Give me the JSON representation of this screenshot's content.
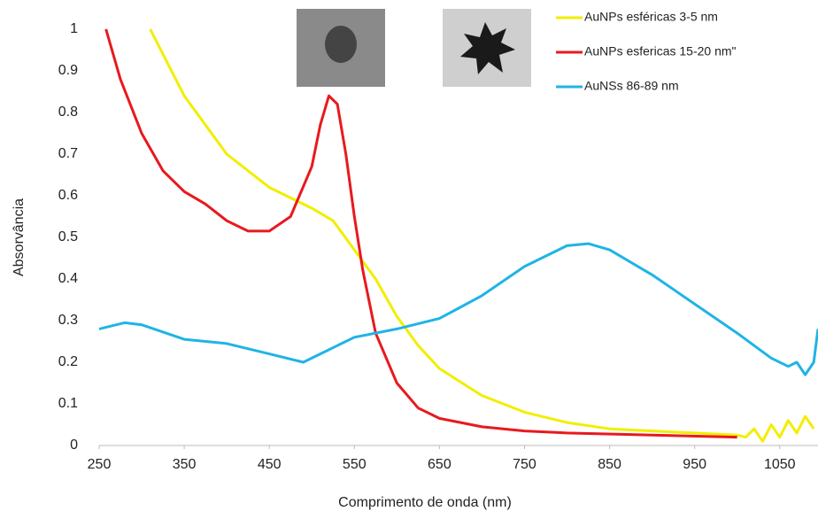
{
  "chart_data": {
    "type": "line",
    "x_label": "Comprimento de onda (nm)",
    "y_label": "Absorvância",
    "xlim": [
      250,
      1095
    ],
    "ylim": [
      0,
      1
    ],
    "xticks": [
      250,
      350,
      450,
      550,
      650,
      750,
      850,
      950,
      1050
    ],
    "yticks": [
      0,
      0.1,
      0.2,
      0.3,
      0.4,
      0.5,
      0.6,
      0.7,
      0.8,
      0.9,
      1
    ],
    "grid": false,
    "legend": "top-right",
    "series": [
      {
        "name": "AuNPs esféricas 3-5 nm",
        "color": "#f2ee00",
        "x": [
          310,
          350,
          400,
          450,
          500,
          525,
          550,
          575,
          600,
          625,
          650,
          700,
          750,
          800,
          850,
          900,
          950,
          1000,
          1010,
          1020,
          1030,
          1040,
          1050,
          1060,
          1070,
          1080,
          1090
        ],
        "values": [
          1.0,
          0.84,
          0.7,
          0.62,
          0.57,
          0.54,
          0.47,
          0.4,
          0.31,
          0.24,
          0.185,
          0.12,
          0.08,
          0.055,
          0.04,
          0.035,
          0.03,
          0.025,
          0.02,
          0.04,
          0.01,
          0.05,
          0.02,
          0.06,
          0.03,
          0.07,
          0.04
        ]
      },
      {
        "name": "AuNPs esfericas 15-20 nm\"",
        "color": "#e8191e",
        "x": [
          258,
          275,
          300,
          325,
          350,
          375,
          400,
          425,
          450,
          475,
          500,
          510,
          520,
          530,
          540,
          550,
          560,
          575,
          600,
          625,
          650,
          700,
          750,
          800,
          900,
          1000
        ],
        "values": [
          1.0,
          0.88,
          0.75,
          0.66,
          0.61,
          0.58,
          0.54,
          0.515,
          0.515,
          0.55,
          0.67,
          0.77,
          0.84,
          0.82,
          0.7,
          0.55,
          0.42,
          0.27,
          0.15,
          0.09,
          0.065,
          0.045,
          0.035,
          0.03,
          0.025,
          0.02
        ]
      },
      {
        "name": "AuNSs 86-89 nm",
        "color": "#1fb4e6",
        "x": [
          250,
          280,
          300,
          350,
          400,
          450,
          490,
          510,
          550,
          600,
          650,
          700,
          750,
          800,
          825,
          850,
          900,
          950,
          1000,
          1040,
          1060,
          1070,
          1080,
          1090,
          1095
        ],
        "values": [
          0.28,
          0.295,
          0.29,
          0.255,
          0.245,
          0.22,
          0.2,
          0.22,
          0.26,
          0.28,
          0.305,
          0.36,
          0.43,
          0.48,
          0.485,
          0.47,
          0.41,
          0.34,
          0.27,
          0.21,
          0.19,
          0.2,
          0.17,
          0.2,
          0.28
        ]
      }
    ]
  }
}
